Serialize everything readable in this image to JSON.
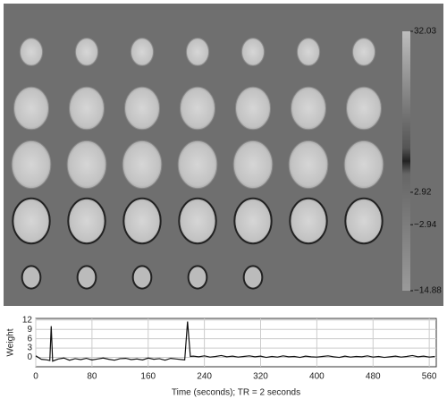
{
  "colorbar": {
    "ticks": [
      32.03,
      2.92,
      {
        "value": -2.94,
        "label": "−2.94"
      },
      {
        "value": -14.88,
        "label": "−14.88"
      }
    ],
    "lim": [
      -14.88,
      32.03
    ]
  },
  "chart_data": {
    "type": "line",
    "xlabel": "Time (seconds); TR = 2 seconds",
    "ylabel": "Weight",
    "x": [
      0,
      8,
      16,
      20,
      22,
      24,
      32,
      40,
      48,
      56,
      64,
      72,
      80,
      88,
      96,
      104,
      112,
      120,
      128,
      136,
      144,
      152,
      160,
      168,
      176,
      184,
      192,
      200,
      208,
      212,
      216,
      220,
      224,
      232,
      240,
      248,
      256,
      264,
      272,
      280,
      288,
      296,
      304,
      312,
      320,
      328,
      336,
      344,
      352,
      360,
      368,
      376,
      384,
      392,
      400,
      408,
      416,
      424,
      432,
      440,
      448,
      456,
      464,
      472,
      480,
      488,
      496,
      504,
      512,
      520,
      528,
      536,
      544,
      552,
      560,
      568
    ],
    "series": [
      {
        "name": "Weight",
        "color": "#111111",
        "values": [
          0.5,
          -0.6,
          -0.8,
          -1,
          10,
          -1.2,
          -0.5,
          -0.2,
          -0.9,
          -0.4,
          -0.7,
          -0.3,
          -0.8,
          -0.5,
          -0.2,
          -0.6,
          -0.9,
          -0.4,
          -0.3,
          -0.7,
          -0.5,
          -0.8,
          -0.2,
          -0.6,
          -0.4,
          -0.9,
          -0.3,
          -0.5,
          -0.7,
          -0.8,
          11.5,
          0.3,
          0.4,
          0.2,
          0.5,
          0.1,
          0.3,
          0.6,
          0.2,
          0.4,
          0.1,
          0.3,
          0.5,
          0.2,
          0.4,
          0.0,
          0.3,
          0.1,
          0.5,
          0.2,
          0.3,
          0.0,
          0.4,
          0.2,
          0.1,
          0.3,
          0.5,
          0.2,
          0.0,
          0.4,
          0.1,
          0.3,
          0.2,
          0.5,
          0.1,
          0.3,
          0.0,
          0.2,
          0.4,
          0.1,
          0.3,
          0.6,
          0.2,
          0.4,
          0.1,
          0.3
        ]
      }
    ],
    "xlim": [
      0,
      570
    ],
    "ylim": [
      -3,
      12.5
    ],
    "xticks": [
      0,
      80,
      160,
      240,
      320,
      400,
      480,
      560
    ],
    "yticks": [
      0,
      3,
      6,
      9,
      12
    ],
    "grid": true
  }
}
